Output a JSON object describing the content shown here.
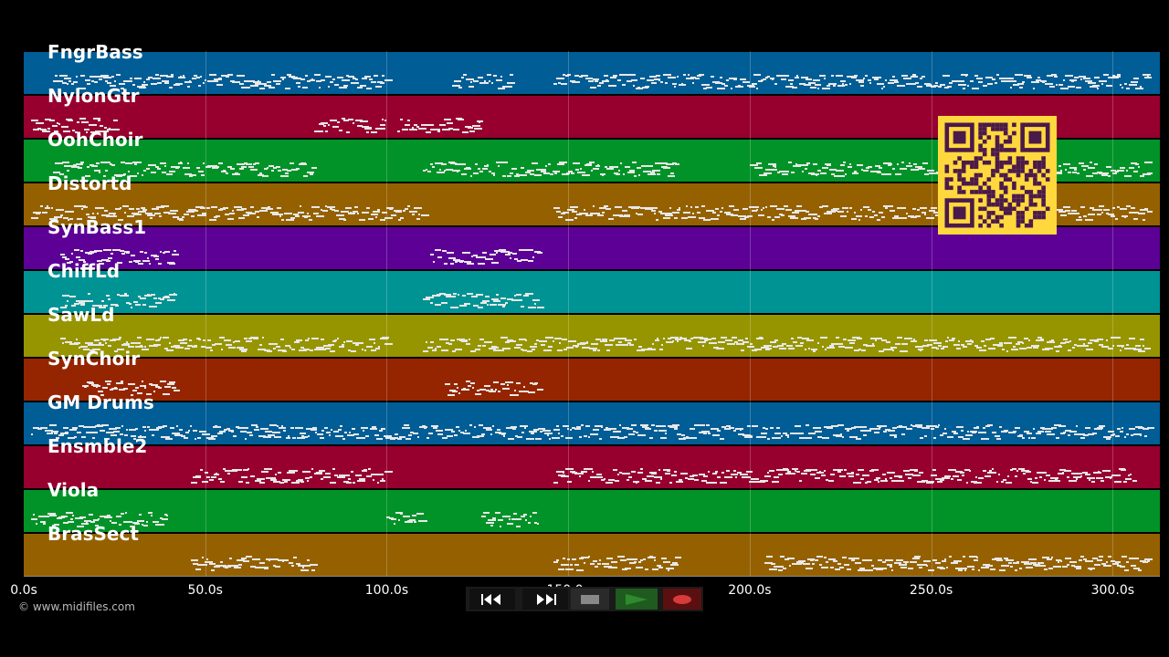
{
  "tracks": [
    {
      "name": "FngrBass",
      "color": "#005d96"
    },
    {
      "name": "NylonGtr",
      "color": "#97002e"
    },
    {
      "name": "OohChoir",
      "color": "#019327"
    },
    {
      "name": "Distortd",
      "color": "#956100"
    },
    {
      "name": "SynBass1",
      "color": "#5c0096"
    },
    {
      "name": "ChiffLd",
      "color": "#009394"
    },
    {
      "name": "SawLd",
      "color": "#969500"
    },
    {
      "name": "SynChoir",
      "color": "#952501"
    },
    {
      "name": "GM Drums",
      "color": "#005d96"
    },
    {
      "name": "Ensmble2",
      "color": "#97002e"
    },
    {
      "name": "Viola",
      "color": "#019327"
    },
    {
      "name": "BrasSect",
      "color": "#956100"
    }
  ],
  "timeline": {
    "max_seconds": 313,
    "ticks": [
      "0.0s",
      "50.0s",
      "100.0s",
      "150.0s",
      "200.0s",
      "250.0s",
      "300.0s"
    ],
    "tick_values": [
      0,
      50,
      100,
      150,
      200,
      250,
      300
    ]
  },
  "copyright": "© www.midifiles.com",
  "transport": {
    "rewind_icon": "rewind-icon",
    "fast_forward_icon": "fast-forward-icon",
    "stop_icon": "stop-icon",
    "play_icon": "play-icon",
    "record_icon": "record-icon",
    "colors": {
      "stop": "#888888",
      "play": "#2d8b2d",
      "record": "#d93a3a",
      "play_bg": "#1f5a1f",
      "record_bg": "#5a1010"
    }
  },
  "qr": {
    "background": "#ffd83d",
    "foreground": "#4a1a4a",
    "icon": "qr-code-icon"
  }
}
